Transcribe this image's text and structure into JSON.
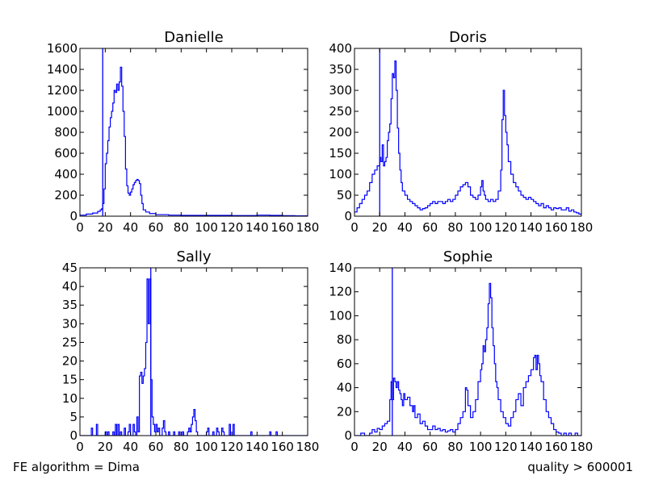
{
  "footer": {
    "left": "FE algorithm = Dima",
    "right": "quality > 600001"
  },
  "colors": {
    "series": "#0000ff",
    "axes": "#000000",
    "background": "#ffffff"
  },
  "chart_data": [
    {
      "type": "histogram-step",
      "title": "Danielle",
      "xlim": [
        0,
        180
      ],
      "ylim": [
        0,
        1600
      ],
      "xticks": [
        0,
        20,
        40,
        60,
        80,
        100,
        120,
        140,
        160,
        180
      ],
      "yticks": [
        0,
        200,
        400,
        600,
        800,
        1000,
        1200,
        1400,
        1600
      ],
      "vline": 18,
      "bin_width": 1,
      "points": [
        [
          0,
          10
        ],
        [
          5,
          20
        ],
        [
          10,
          30
        ],
        [
          14,
          45
        ],
        [
          16,
          60
        ],
        [
          17,
          70
        ],
        [
          18,
          120
        ],
        [
          19,
          260
        ],
        [
          20,
          500
        ],
        [
          21,
          600
        ],
        [
          22,
          720
        ],
        [
          23,
          850
        ],
        [
          24,
          940
        ],
        [
          25,
          1000
        ],
        [
          26,
          1080
        ],
        [
          27,
          1200
        ],
        [
          28,
          1180
        ],
        [
          29,
          1260
        ],
        [
          30,
          1200
        ],
        [
          31,
          1280
        ],
        [
          32,
          1420
        ],
        [
          33,
          1240
        ],
        [
          34,
          1000
        ],
        [
          35,
          760
        ],
        [
          36,
          450
        ],
        [
          37,
          290
        ],
        [
          38,
          220
        ],
        [
          39,
          200
        ],
        [
          40,
          230
        ],
        [
          41,
          260
        ],
        [
          42,
          300
        ],
        [
          43,
          320
        ],
        [
          44,
          340
        ],
        [
          45,
          350
        ],
        [
          46,
          340
        ],
        [
          47,
          310
        ],
        [
          48,
          200
        ],
        [
          49,
          120
        ],
        [
          50,
          60
        ],
        [
          52,
          40
        ],
        [
          55,
          25
        ],
        [
          60,
          15
        ],
        [
          70,
          10
        ],
        [
          80,
          8
        ],
        [
          100,
          8
        ],
        [
          120,
          6
        ],
        [
          130,
          6
        ],
        [
          140,
          10
        ],
        [
          150,
          8
        ],
        [
          160,
          5
        ],
        [
          170,
          3
        ],
        [
          180,
          0
        ]
      ]
    },
    {
      "type": "histogram-step",
      "title": "Doris",
      "xlim": [
        0,
        180
      ],
      "ylim": [
        0,
        400
      ],
      "xticks": [
        0,
        20,
        40,
        60,
        80,
        100,
        120,
        140,
        160,
        180
      ],
      "yticks": [
        0,
        50,
        100,
        150,
        200,
        250,
        300,
        350,
        400
      ],
      "vline": 20,
      "bin_width": 1,
      "points": [
        [
          0,
          10
        ],
        [
          2,
          20
        ],
        [
          4,
          30
        ],
        [
          6,
          40
        ],
        [
          8,
          50
        ],
        [
          10,
          60
        ],
        [
          12,
          80
        ],
        [
          14,
          100
        ],
        [
          16,
          110
        ],
        [
          18,
          120
        ],
        [
          20,
          140
        ],
        [
          21,
          130
        ],
        [
          22,
          170
        ],
        [
          23,
          120
        ],
        [
          24,
          130
        ],
        [
          25,
          140
        ],
        [
          26,
          180
        ],
        [
          27,
          200
        ],
        [
          28,
          220
        ],
        [
          29,
          280
        ],
        [
          30,
          340
        ],
        [
          31,
          330
        ],
        [
          32,
          370
        ],
        [
          33,
          300
        ],
        [
          34,
          210
        ],
        [
          35,
          150
        ],
        [
          36,
          110
        ],
        [
          37,
          80
        ],
        [
          38,
          60
        ],
        [
          40,
          50
        ],
        [
          42,
          40
        ],
        [
          44,
          35
        ],
        [
          46,
          30
        ],
        [
          48,
          25
        ],
        [
          50,
          20
        ],
        [
          52,
          15
        ],
        [
          54,
          18
        ],
        [
          56,
          20
        ],
        [
          58,
          25
        ],
        [
          60,
          30
        ],
        [
          62,
          35
        ],
        [
          64,
          30
        ],
        [
          66,
          35
        ],
        [
          68,
          35
        ],
        [
          70,
          30
        ],
        [
          72,
          35
        ],
        [
          74,
          40
        ],
        [
          76,
          35
        ],
        [
          78,
          40
        ],
        [
          80,
          50
        ],
        [
          82,
          60
        ],
        [
          84,
          70
        ],
        [
          86,
          75
        ],
        [
          88,
          80
        ],
        [
          90,
          70
        ],
        [
          92,
          50
        ],
        [
          94,
          45
        ],
        [
          96,
          40
        ],
        [
          98,
          50
        ],
        [
          100,
          70
        ],
        [
          101,
          85
        ],
        [
          102,
          60
        ],
        [
          103,
          50
        ],
        [
          104,
          40
        ],
        [
          106,
          35
        ],
        [
          108,
          40
        ],
        [
          110,
          35
        ],
        [
          112,
          40
        ],
        [
          114,
          60
        ],
        [
          116,
          110
        ],
        [
          117,
          230
        ],
        [
          118,
          300
        ],
        [
          119,
          240
        ],
        [
          120,
          200
        ],
        [
          121,
          170
        ],
        [
          122,
          130
        ],
        [
          124,
          100
        ],
        [
          126,
          80
        ],
        [
          128,
          70
        ],
        [
          130,
          60
        ],
        [
          132,
          50
        ],
        [
          134,
          45
        ],
        [
          136,
          40
        ],
        [
          138,
          45
        ],
        [
          140,
          40
        ],
        [
          142,
          35
        ],
        [
          144,
          30
        ],
        [
          146,
          25
        ],
        [
          148,
          30
        ],
        [
          150,
          20
        ],
        [
          152,
          25
        ],
        [
          154,
          20
        ],
        [
          156,
          15
        ],
        [
          158,
          20
        ],
        [
          160,
          18
        ],
        [
          162,
          20
        ],
        [
          164,
          15
        ],
        [
          166,
          15
        ],
        [
          168,
          20
        ],
        [
          170,
          12
        ],
        [
          172,
          15
        ],
        [
          174,
          10
        ],
        [
          176,
          8
        ],
        [
          178,
          5
        ],
        [
          180,
          0
        ]
      ]
    },
    {
      "type": "histogram-step",
      "title": "Sally",
      "xlim": [
        0,
        180
      ],
      "ylim": [
        0,
        45
      ],
      "xticks": [
        0,
        20,
        40,
        60,
        80,
        100,
        120,
        140,
        160,
        180
      ],
      "yticks": [
        0,
        5,
        10,
        15,
        20,
        25,
        30,
        35,
        40,
        45
      ],
      "vline": 56,
      "bin_width": 1,
      "points": [
        [
          0,
          0
        ],
        [
          8,
          0
        ],
        [
          9,
          2
        ],
        [
          10,
          0
        ],
        [
          13,
          3
        ],
        [
          14,
          0
        ],
        [
          20,
          1
        ],
        [
          21,
          0
        ],
        [
          22,
          1
        ],
        [
          23,
          0
        ],
        [
          26,
          1
        ],
        [
          27,
          0
        ],
        [
          28,
          3
        ],
        [
          29,
          0
        ],
        [
          30,
          3
        ],
        [
          31,
          0
        ],
        [
          32,
          1
        ],
        [
          33,
          0
        ],
        [
          35,
          2
        ],
        [
          36,
          0
        ],
        [
          38,
          1
        ],
        [
          39,
          3
        ],
        [
          40,
          0
        ],
        [
          42,
          3
        ],
        [
          43,
          1
        ],
        [
          44,
          0
        ],
        [
          45,
          5
        ],
        [
          46,
          1
        ],
        [
          47,
          16
        ],
        [
          48,
          17
        ],
        [
          49,
          14
        ],
        [
          50,
          16
        ],
        [
          51,
          18
        ],
        [
          52,
          25
        ],
        [
          53,
          42
        ],
        [
          54,
          30
        ],
        [
          55,
          42
        ],
        [
          56,
          15
        ],
        [
          57,
          5
        ],
        [
          58,
          3
        ],
        [
          59,
          1
        ],
        [
          60,
          3
        ],
        [
          61,
          1
        ],
        [
          62,
          2
        ],
        [
          63,
          0
        ],
        [
          65,
          2
        ],
        [
          66,
          4
        ],
        [
          67,
          1
        ],
        [
          68,
          0
        ],
        [
          70,
          1
        ],
        [
          71,
          0
        ],
        [
          74,
          1
        ],
        [
          75,
          0
        ],
        [
          78,
          1
        ],
        [
          79,
          0
        ],
        [
          81,
          1
        ],
        [
          82,
          0
        ],
        [
          85,
          1
        ],
        [
          86,
          2
        ],
        [
          87,
          1
        ],
        [
          88,
          3
        ],
        [
          89,
          5
        ],
        [
          90,
          7
        ],
        [
          91,
          4
        ],
        [
          92,
          1
        ],
        [
          93,
          0
        ],
        [
          100,
          1
        ],
        [
          101,
          2
        ],
        [
          102,
          0
        ],
        [
          105,
          1
        ],
        [
          106,
          0
        ],
        [
          108,
          2
        ],
        [
          109,
          1
        ],
        [
          110,
          0
        ],
        [
          112,
          2
        ],
        [
          113,
          1
        ],
        [
          114,
          0
        ],
        [
          118,
          3
        ],
        [
          119,
          0
        ],
        [
          121,
          3
        ],
        [
          122,
          0
        ],
        [
          135,
          1
        ],
        [
          136,
          0
        ],
        [
          150,
          1
        ],
        [
          151,
          0
        ],
        [
          155,
          1
        ],
        [
          156,
          0
        ],
        [
          180,
          0
        ]
      ]
    },
    {
      "type": "histogram-step",
      "title": "Sophie",
      "xlim": [
        0,
        180
      ],
      "ylim": [
        0,
        140
      ],
      "xticks": [
        0,
        20,
        40,
        60,
        80,
        100,
        120,
        140,
        160,
        180
      ],
      "yticks": [
        0,
        20,
        40,
        60,
        80,
        100,
        120,
        140
      ],
      "vline": 30,
      "bin_width": 1,
      "points": [
        [
          0,
          0
        ],
        [
          5,
          2
        ],
        [
          8,
          0
        ],
        [
          12,
          2
        ],
        [
          14,
          5
        ],
        [
          16,
          3
        ],
        [
          18,
          6
        ],
        [
          20,
          5
        ],
        [
          22,
          8
        ],
        [
          24,
          10
        ],
        [
          26,
          12
        ],
        [
          28,
          30
        ],
        [
          29,
          45
        ],
        [
          30,
          30
        ],
        [
          31,
          48
        ],
        [
          32,
          45
        ],
        [
          33,
          40
        ],
        [
          34,
          45
        ],
        [
          35,
          38
        ],
        [
          36,
          35
        ],
        [
          37,
          30
        ],
        [
          38,
          25
        ],
        [
          39,
          35
        ],
        [
          40,
          30
        ],
        [
          42,
          32
        ],
        [
          44,
          25
        ],
        [
          46,
          20
        ],
        [
          47,
          25
        ],
        [
          48,
          15
        ],
        [
          50,
          18
        ],
        [
          52,
          10
        ],
        [
          54,
          12
        ],
        [
          56,
          8
        ],
        [
          58,
          5
        ],
        [
          60,
          5
        ],
        [
          62,
          8
        ],
        [
          64,
          5
        ],
        [
          66,
          6
        ],
        [
          68,
          4
        ],
        [
          70,
          5
        ],
        [
          72,
          3
        ],
        [
          74,
          4
        ],
        [
          76,
          5
        ],
        [
          78,
          3
        ],
        [
          80,
          5
        ],
        [
          82,
          10
        ],
        [
          84,
          15
        ],
        [
          86,
          20
        ],
        [
          88,
          40
        ],
        [
          89,
          38
        ],
        [
          90,
          25
        ],
        [
          92,
          15
        ],
        [
          94,
          20
        ],
        [
          96,
          30
        ],
        [
          98,
          45
        ],
        [
          100,
          55
        ],
        [
          101,
          60
        ],
        [
          102,
          75
        ],
        [
          103,
          70
        ],
        [
          104,
          80
        ],
        [
          105,
          90
        ],
        [
          106,
          110
        ],
        [
          107,
          127
        ],
        [
          108,
          115
        ],
        [
          109,
          90
        ],
        [
          110,
          75
        ],
        [
          111,
          60
        ],
        [
          112,
          45
        ],
        [
          113,
          40
        ],
        [
          114,
          30
        ],
        [
          116,
          20
        ],
        [
          118,
          15
        ],
        [
          120,
          10
        ],
        [
          122,
          8
        ],
        [
          124,
          15
        ],
        [
          126,
          20
        ],
        [
          128,
          30
        ],
        [
          130,
          35
        ],
        [
          132,
          25
        ],
        [
          134,
          40
        ],
        [
          136,
          45
        ],
        [
          138,
          50
        ],
        [
          140,
          55
        ],
        [
          142,
          65
        ],
        [
          143,
          67
        ],
        [
          144,
          55
        ],
        [
          145,
          67
        ],
        [
          146,
          60
        ],
        [
          147,
          50
        ],
        [
          148,
          45
        ],
        [
          150,
          30
        ],
        [
          152,
          20
        ],
        [
          154,
          15
        ],
        [
          156,
          10
        ],
        [
          158,
          5
        ],
        [
          160,
          3
        ],
        [
          162,
          2
        ],
        [
          164,
          0
        ],
        [
          166,
          2
        ],
        [
          168,
          0
        ],
        [
          170,
          2
        ],
        [
          172,
          0
        ],
        [
          175,
          2
        ],
        [
          177,
          0
        ],
        [
          180,
          0
        ]
      ]
    }
  ]
}
